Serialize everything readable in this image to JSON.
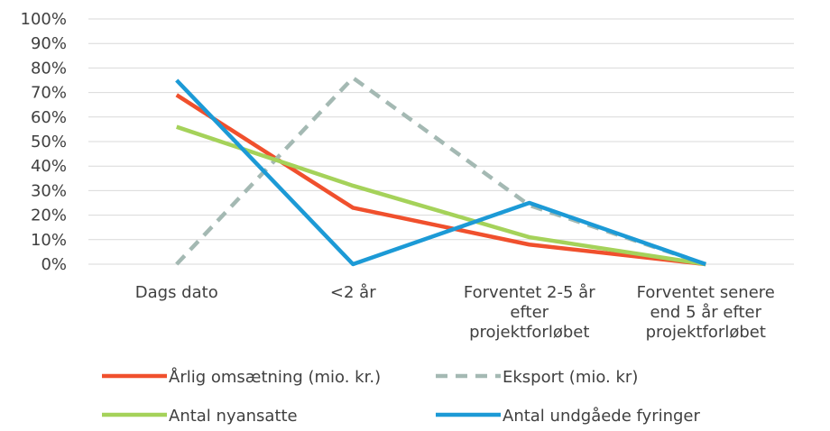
{
  "chart_data": {
    "type": "line",
    "categories": [
      [
        "Dags dato"
      ],
      [
        "<2 år"
      ],
      [
        "Forventet 2-5 år",
        "efter",
        "projektforløbet"
      ],
      [
        "Forventet senere",
        "end 5 år efter",
        "projektforløbet"
      ]
    ],
    "y_ticks": [
      "0%",
      "10%",
      "20%",
      "30%",
      "40%",
      "50%",
      "60%",
      "70%",
      "80%",
      "90%",
      "100%"
    ],
    "ylim": [
      0,
      100
    ],
    "grid": true,
    "legend_position": "bottom",
    "series": [
      {
        "name": "Årlig omsætning (mio. kr.)",
        "values": [
          69,
          23,
          8,
          0
        ],
        "color": "#F0502D",
        "dash": "solid"
      },
      {
        "name": "Eksport (mio. kr)",
        "values": [
          0,
          76,
          24,
          0
        ],
        "color": "#A4B9B3",
        "dash": "dashed"
      },
      {
        "name": "Antal nyansatte",
        "values": [
          56,
          32,
          11,
          0
        ],
        "color": "#A5D25A",
        "dash": "solid"
      },
      {
        "name": "Antal undgåede fyringer",
        "values": [
          75,
          0,
          25,
          0
        ],
        "color": "#1C9AD6",
        "dash": "solid"
      }
    ]
  }
}
